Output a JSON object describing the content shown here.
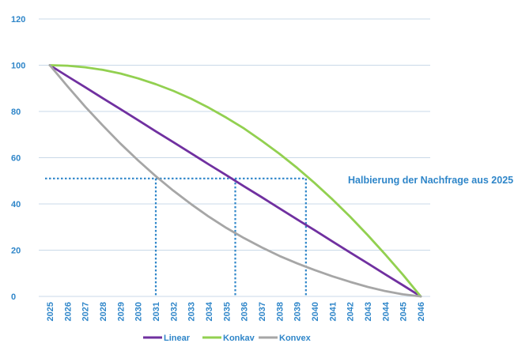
{
  "chart_data": {
    "type": "line",
    "x": [
      2025,
      2026,
      2027,
      2028,
      2029,
      2030,
      2031,
      2032,
      2033,
      2034,
      2035,
      2036,
      2037,
      2038,
      2039,
      2040,
      2041,
      2042,
      2043,
      2044,
      2045,
      2046
    ],
    "x_tick_labels": [
      "2025",
      "2026",
      "2027",
      "2028",
      "2029",
      "2030",
      "2031",
      "2032",
      "2033",
      "2034",
      "2035",
      "2036",
      "2037",
      "2038",
      "2039",
      "2040",
      "2041",
      "2042",
      "2043",
      "2044",
      "2045",
      "2046"
    ],
    "ylim": [
      0,
      120
    ],
    "y_ticks": [
      0,
      20,
      40,
      60,
      80,
      100,
      120
    ],
    "y_tick_labels": [
      "0",
      "20",
      "40",
      "60",
      "80",
      "100",
      "120"
    ],
    "grid": "horizontal",
    "legend": "bottom",
    "series": [
      {
        "name": "Linear",
        "color": "#7030a0",
        "values": [
          100,
          95.2,
          90.5,
          85.7,
          81.0,
          76.2,
          71.4,
          66.7,
          61.9,
          57.1,
          52.4,
          47.6,
          42.9,
          38.1,
          33.3,
          28.6,
          23.8,
          19.0,
          14.3,
          9.5,
          4.8,
          0
        ]
      },
      {
        "name": "Konkav",
        "color": "#92d050",
        "values": [
          100,
          99.8,
          99.1,
          98.0,
          96.4,
          94.3,
          91.8,
          88.9,
          85.5,
          81.6,
          77.3,
          72.6,
          67.3,
          61.7,
          55.6,
          49.0,
          42.0,
          34.5,
          26.5,
          18.1,
          9.3,
          0
        ]
      },
      {
        "name": "Konvex",
        "color": "#a6a6a6",
        "values": [
          100,
          90.9,
          82.1,
          73.9,
          66.1,
          58.8,
          52.0,
          45.7,
          39.9,
          34.5,
          29.6,
          25.2,
          21.2,
          17.5,
          14.3,
          11.4,
          8.7,
          6.3,
          4.1,
          2.3,
          0.9,
          0
        ]
      }
    ],
    "reference_lines": {
      "color": "#2f86c9",
      "horizontal_y": 51,
      "vertical_x": [
        2031,
        2035.5,
        2039.5
      ]
    },
    "annotation": "Halbierung der Nachfrage aus 2025"
  }
}
